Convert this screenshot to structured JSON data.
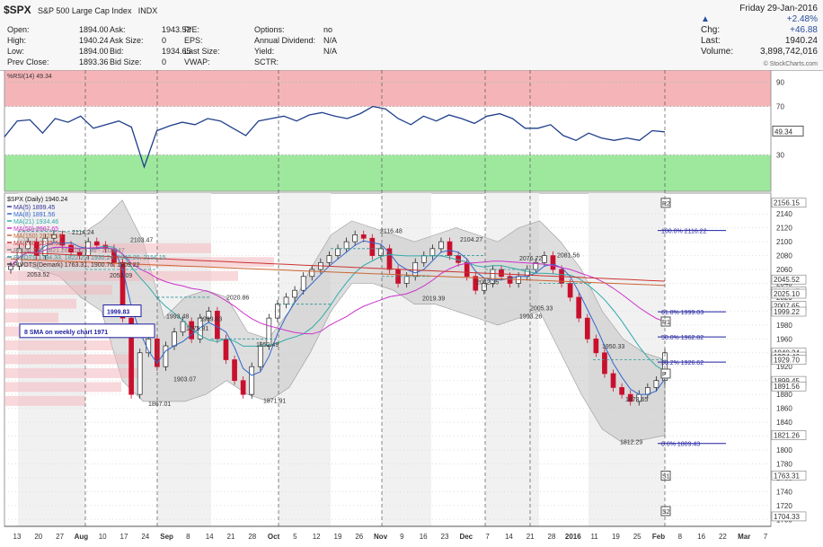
{
  "header": {
    "symbol": "$SPX",
    "name": "S&P 500 Large Cap Index",
    "exchange": "INDX",
    "fields_col1": [
      {
        "label": "Open:",
        "value": "1894.00"
      },
      {
        "label": "High:",
        "value": "1940.24"
      },
      {
        "label": "Low:",
        "value": "1894.00"
      },
      {
        "label": "Prev Close:",
        "value": "1893.36"
      }
    ],
    "fields_col2": [
      {
        "label": "Ask:",
        "value": "1943.52"
      },
      {
        "label": "Ask Size:",
        "value": "0"
      },
      {
        "label": "Bid:",
        "value": "1934.65"
      },
      {
        "label": "Bid Size:",
        "value": "0"
      }
    ],
    "fields_col3": [
      {
        "label": "P/E:",
        "value": ""
      },
      {
        "label": "EPS:",
        "value": ""
      },
      {
        "label": "Last Size:",
        "value": ""
      },
      {
        "label": "VWAP:",
        "value": ""
      }
    ],
    "fields_col4": [
      {
        "label": "Options:",
        "value": "no"
      },
      {
        "label": "Annual Dividend:",
        "value": "N/A"
      },
      {
        "label": "Yield:",
        "value": "N/A"
      },
      {
        "label": "SCTR:",
        "value": ""
      }
    ],
    "date": "Friday 29-Jan-2016",
    "change_pct": "+2.48%",
    "chg_label": "Chg:",
    "chg_value": "+46.88",
    "last_label": "Last:",
    "last_value": "1940.24",
    "volume_label": "Volume:",
    "volume_value": "3,898,742,016",
    "watermark": "© StockCharts.com",
    "up_color": "#2a4f9e"
  },
  "chart_data": [
    {
      "type": "line",
      "title": "%RSI(14) 49.34",
      "y_ticks": [
        30,
        70,
        90
      ],
      "ylim": [
        0,
        100
      ],
      "zones": [
        {
          "from": 70,
          "to": 100,
          "color": "#f5b5b8"
        },
        {
          "from": 0,
          "to": 30,
          "color": "#9ee89e"
        }
      ],
      "last_value": "49.34",
      "series": [
        {
          "values": [
            45,
            58,
            59,
            48,
            60,
            57,
            62,
            52,
            55,
            58,
            53,
            20,
            50,
            54,
            57,
            55,
            60,
            58,
            52,
            46,
            58,
            60,
            62,
            58,
            63,
            65,
            62,
            60,
            64,
            70,
            68,
            60,
            55,
            62,
            58,
            63,
            60,
            56,
            62,
            64,
            60,
            52,
            52,
            55,
            46,
            42,
            48,
            44,
            42,
            44,
            42,
            50,
            49
          ]
        }
      ]
    },
    {
      "type": "candlestick",
      "title": "$SPX (Daily) 1940.24",
      "legend": [
        {
          "name": "MA(5) 1899.45",
          "color": "#333399"
        },
        {
          "name": "MA(8) 1891.56",
          "color": "#3366cc"
        },
        {
          "name": "MA(21) 1934.46",
          "color": "#33aaaa"
        },
        {
          "name": "MA(50) 2007.65",
          "color": "#cc33cc"
        },
        {
          "name": "MA(150) 2025.10",
          "color": "#cc6633"
        },
        {
          "name": "MA(200) 2045.52",
          "color": "#cc3333"
        },
        {
          "name": "BB(20,2.0) 1821.26 - 1924.86 - 2028.47",
          "color": "#888888"
        },
        {
          "name": "PIVOTS 1794.33, 1822.29, 1930.24, 2040.20, 2156.15",
          "color": "#339999"
        },
        {
          "name": "PIVOTS(Demark) 1763.31, 1900.76, 1909.22",
          "color": "#333333"
        }
      ],
      "ylim": [
        1690,
        2170
      ],
      "y_ticks": [
        1700,
        1720,
        1740,
        1760,
        1780,
        1800,
        1820,
        1840,
        1860,
        1880,
        1900,
        1920,
        1940,
        1960,
        1980,
        2000,
        2020,
        2040,
        2060,
        2080,
        2100,
        2120,
        2140
      ],
      "right_labels": [
        "2156.15",
        "2045.52",
        "2028.47",
        "2025.10",
        "2007.65",
        "1999.22",
        "1940.24",
        "1934.46",
        "1929.70",
        "1899.45",
        "1891.56",
        "1821.26",
        "1763.31",
        "1704.33"
      ],
      "x_labels": [
        "13",
        "20",
        "27",
        "Aug",
        "10",
        "17",
        "24",
        "Sep",
        "8",
        "14",
        "21",
        "28",
        "Oct",
        "5",
        "12",
        "19",
        "26",
        "Nov",
        "9",
        "16",
        "23",
        "Dec",
        "7",
        "14",
        "21",
        "28",
        "2016",
        "11",
        "19",
        "25",
        "Feb",
        "8",
        "16",
        "22",
        "Mar",
        "7"
      ],
      "annotations": [
        {
          "text": "2053.52",
          "x": "Jul 22",
          "y": 2053.52
        },
        {
          "text": "2114.24",
          "x": "Jul 28",
          "y": 2114.24
        },
        {
          "text": "2052.09",
          "x": "Aug 14",
          "y": 2052.09
        },
        {
          "text": "2103.47",
          "x": "Aug 19",
          "y": 2103.47
        },
        {
          "text": "1993.48",
          "x": "Aug 28",
          "y": 1993.48
        },
        {
          "text": "1867.01",
          "x": "Aug 24",
          "y": 1867.01
        },
        {
          "text": "1903.07",
          "x": "Sep 2",
          "y": 1903.07
        },
        {
          "text": "1975.81",
          "x": "Sep 4",
          "y": 1975.81
        },
        {
          "text": "1989.63",
          "x": "Sep 10",
          "y": 1989.63
        },
        {
          "text": "2020.86",
          "x": "Sep 17",
          "y": 2020.86
        },
        {
          "text": "1952.49",
          "x": "Sep 23",
          "y": 1952.49
        },
        {
          "text": "1871.91",
          "x": "Sep 29",
          "y": 1871.91
        },
        {
          "text": "2116.48",
          "x": "Nov 3",
          "y": 2116.48
        },
        {
          "text": "2019.39",
          "x": "Nov 16",
          "y": 2019.39
        },
        {
          "text": "2104.27",
          "x": "Dec 2",
          "y": 2104.27
        },
        {
          "text": "2042.35",
          "x": "Dec 9",
          "y": 2042.35
        },
        {
          "text": "2076.72",
          "x": "Dec 14",
          "y": 2076.72
        },
        {
          "text": "1993.26",
          "x": "Dec 14",
          "y": 1993.26
        },
        {
          "text": "2005.33",
          "x": "Dec 18",
          "y": 2005.33
        },
        {
          "text": "2081.56",
          "x": "Dec 29",
          "y": 2081.56
        },
        {
          "text": "1950.33",
          "x": "Jan 7",
          "y": 1950.33
        },
        {
          "text": "1873.65",
          "x": "Jan 22",
          "y": 1873.65
        },
        {
          "text": "1812.29",
          "x": "Jan 20",
          "y": 1812.29
        },
        {
          "text": "100.0% 2116.22",
          "x": "Jan 4",
          "y": 2116.22
        },
        {
          "text": "61.8% 1999.03",
          "x": "Jan 4",
          "y": 1999.03
        },
        {
          "text": "50.0% 1962.82",
          "x": "Jan 4",
          "y": 1962.82
        },
        {
          "text": "38.2% 1926.62",
          "x": "Jan 4",
          "y": 1926.62
        },
        {
          "text": "0.0% 1809.43",
          "x": "Jan 4",
          "y": 1809.43
        }
      ],
      "callouts": [
        {
          "text": "1999.83",
          "y": 1999.83
        },
        {
          "text": "8 SMA on weekly chart 1971",
          "y": 1971
        }
      ],
      "pivot_markers": [
        "R2",
        "R1",
        "P",
        "S1",
        "S2"
      ]
    }
  ]
}
